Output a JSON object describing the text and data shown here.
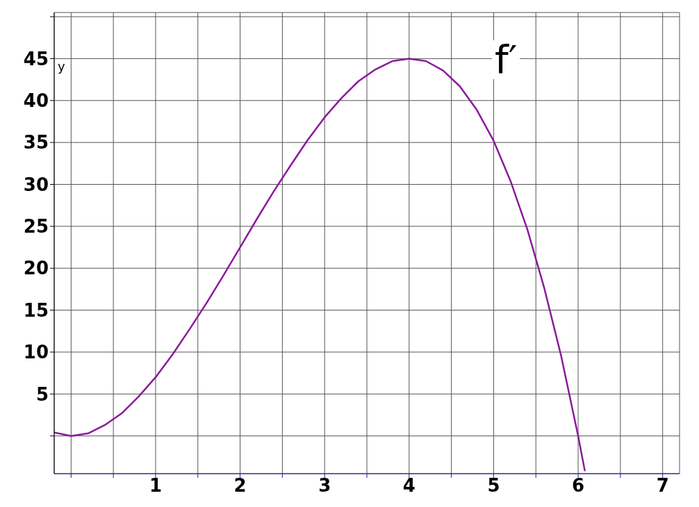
{
  "chart_data": {
    "type": "line",
    "ylabel": "y",
    "annotations": [
      "f′"
    ],
    "x": [
      -0.2,
      0,
      0.2,
      0.4,
      0.6,
      0.8,
      1,
      1.2,
      1.4,
      1.6,
      1.8,
      2,
      2.2,
      2.4,
      2.6,
      2.8,
      3,
      3.2,
      3.4,
      3.6,
      3.8,
      4,
      4.2,
      4.4,
      4.6,
      4.8,
      5,
      5.2,
      5.4,
      5.6,
      5.8,
      6,
      6.08
    ],
    "series": [
      {
        "color": "#8b1a9b",
        "values": [
          0.4,
          0,
          0.3,
          1.3,
          2.7,
          4.7,
          7,
          9.7,
          12.7,
          15.8,
          19.1,
          22.5,
          25.9,
          29.2,
          32.3,
          35.3,
          38,
          40.3,
          42.3,
          43.7,
          44.7,
          45,
          44.7,
          43.6,
          41.7,
          38.9,
          35.2,
          30.4,
          24.6,
          17.6,
          9.5,
          0,
          -4.2
        ]
      }
    ],
    "xlim": [
      -0.2,
      7.2
    ],
    "ylim": [
      -4.5,
      50.5
    ],
    "xticks": [
      {
        "value": 0,
        "label": null
      },
      {
        "value": 0.5,
        "label": null
      },
      1,
      {
        "value": 1.5,
        "label": null
      },
      2,
      {
        "value": 2.5,
        "label": null
      },
      3,
      {
        "value": 3.5,
        "label": null
      },
      4,
      {
        "value": 4.5,
        "label": null
      },
      5,
      {
        "value": 5.5,
        "label": null
      },
      6,
      {
        "value": 6.5,
        "label": null
      },
      7
    ],
    "yticks": [
      {
        "value": 0,
        "label": null
      },
      5,
      10,
      15,
      20,
      25,
      30,
      35,
      40,
      45,
      {
        "value": 50,
        "label": null
      }
    ],
    "grid": true,
    "marker": "none",
    "line_style": "solid"
  }
}
